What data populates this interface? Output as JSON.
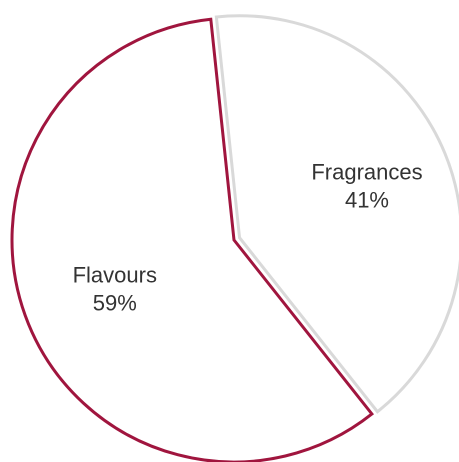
{
  "chart_data": {
    "type": "pie",
    "title": "",
    "slices": [
      {
        "label": "Fragrances",
        "value": 41,
        "display_value": "41%",
        "fill": "#ffffff",
        "stroke": "#d9d9d9"
      },
      {
        "label": "Flavours",
        "value": 59,
        "display_value": "59%",
        "fill": "#ffffff",
        "stroke": "#a0153e"
      }
    ],
    "legend": "none",
    "labels_inside": true
  }
}
